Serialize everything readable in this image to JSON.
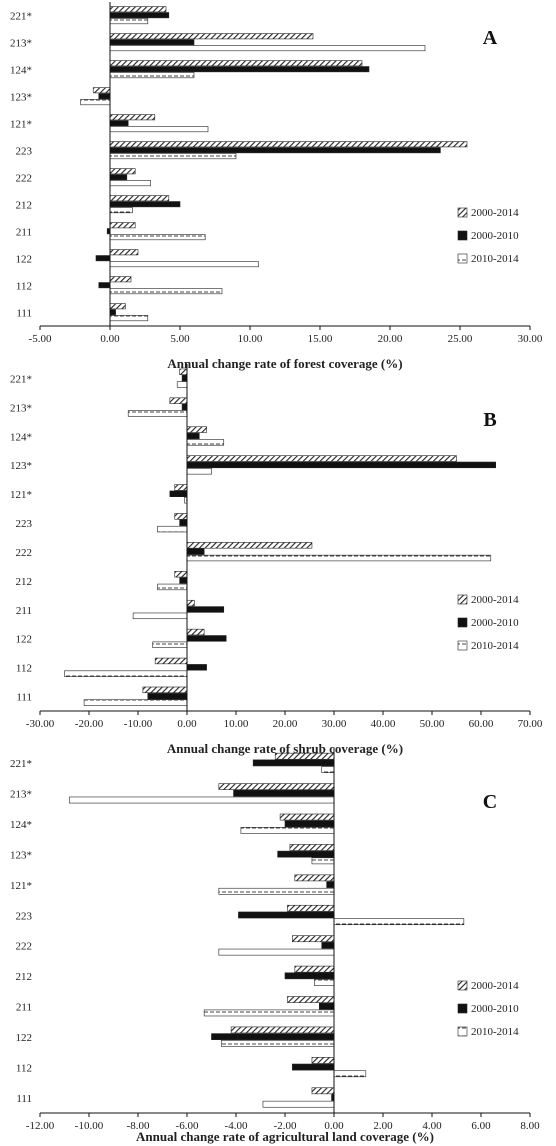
{
  "legend": [
    "2000-2014",
    "2000-2010",
    "2010-2014"
  ],
  "colors": {
    "solid": "#111111",
    "stroke": "#222222",
    "hatch": "#333333"
  },
  "chart_data": [
    {
      "type": "bar",
      "panel_label": "A",
      "xlabel": "Annual  change rate of forest coverage (%)",
      "xlim": [
        -5,
        30
      ],
      "xticks": [
        "-5.00",
        "0.00",
        "5.00",
        "10.00",
        "15.00",
        "20.00",
        "25.00",
        "30.00"
      ],
      "categories": [
        "221*",
        "213*",
        "124*",
        "123*",
        "121*",
        "223",
        "222",
        "212",
        "211",
        "122",
        "112",
        "111"
      ],
      "series": [
        {
          "name": "2000-2014",
          "values": [
            4.0,
            14.5,
            18.0,
            -1.2,
            3.2,
            25.5,
            1.8,
            4.2,
            1.8,
            2.0,
            1.5,
            1.1
          ]
        },
        {
          "name": "2000-2010",
          "values": [
            4.2,
            6.0,
            18.5,
            -0.8,
            1.3,
            23.6,
            1.2,
            5.0,
            -0.2,
            -1.0,
            -0.8,
            0.4
          ]
        },
        {
          "name": "2010-2014",
          "values": [
            2.7,
            22.5,
            6.0,
            -2.1,
            7.0,
            9.0,
            2.9,
            1.6,
            6.8,
            10.6,
            8.0,
            2.7
          ]
        }
      ]
    },
    {
      "type": "bar",
      "panel_label": "B",
      "xlabel": "Annual  change rate of shrub  coverage (%)",
      "xlim": [
        -30,
        70
      ],
      "xticks": [
        "-30.00",
        "-20.00",
        "-10.00",
        "0.00",
        "10.00",
        "20.00",
        "30.00",
        "40.00",
        "50.00",
        "60.00",
        "70.00"
      ],
      "categories": [
        "221*",
        "213*",
        "124*",
        "123*",
        "121*",
        "223",
        "222",
        "212",
        "211",
        "122",
        "112",
        "111"
      ],
      "series": [
        {
          "name": "2000-2014",
          "values": [
            -1.5,
            -3.5,
            4.0,
            55.0,
            -2.5,
            -2.5,
            25.5,
            -2.5,
            1.5,
            3.5,
            -6.5,
            -9.0
          ]
        },
        {
          "name": "2000-2010",
          "values": [
            -1.0,
            -1.0,
            2.5,
            63.0,
            -3.5,
            -1.5,
            3.5,
            -1.5,
            7.5,
            8.0,
            4.0,
            -8.0
          ]
        },
        {
          "name": "2010-2014",
          "values": [
            -2.0,
            -12.0,
            7.5,
            5.0,
            -0.5,
            -6.0,
            62.0,
            -6.0,
            -11.0,
            -7.0,
            -25.0,
            -21.0
          ]
        }
      ]
    },
    {
      "type": "bar",
      "panel_label": "C",
      "xlabel": "Annual  change rate of agricultural  land  coverage (%)",
      "xlim": [
        -12,
        8
      ],
      "xticks": [
        "-12.00",
        "-10.00",
        "-8.00",
        "-6.00",
        "-4.00",
        "-2.00",
        "0.00",
        "2.00",
        "4.00",
        "6.00",
        "8.00"
      ],
      "categories": [
        "221*",
        "213*",
        "124*",
        "123*",
        "121*",
        "223",
        "222",
        "212",
        "211",
        "122",
        "112",
        "111"
      ],
      "series": [
        {
          "name": "2000-2014",
          "values": [
            -2.4,
            -4.7,
            -2.2,
            -1.8,
            -1.6,
            -1.9,
            -1.7,
            -1.6,
            -1.9,
            -4.2,
            -0.9,
            -0.9
          ]
        },
        {
          "name": "2000-2010",
          "values": [
            -3.3,
            -4.1,
            -2.0,
            -2.3,
            -0.3,
            -3.9,
            -0.5,
            -2.0,
            -0.6,
            -5.0,
            -1.7,
            -0.1
          ]
        },
        {
          "name": "2010-2014",
          "values": [
            -0.5,
            -10.8,
            -3.8,
            -0.9,
            -4.7,
            5.3,
            -4.7,
            -0.8,
            -5.3,
            -4.6,
            1.3,
            -2.9
          ]
        }
      ]
    }
  ]
}
